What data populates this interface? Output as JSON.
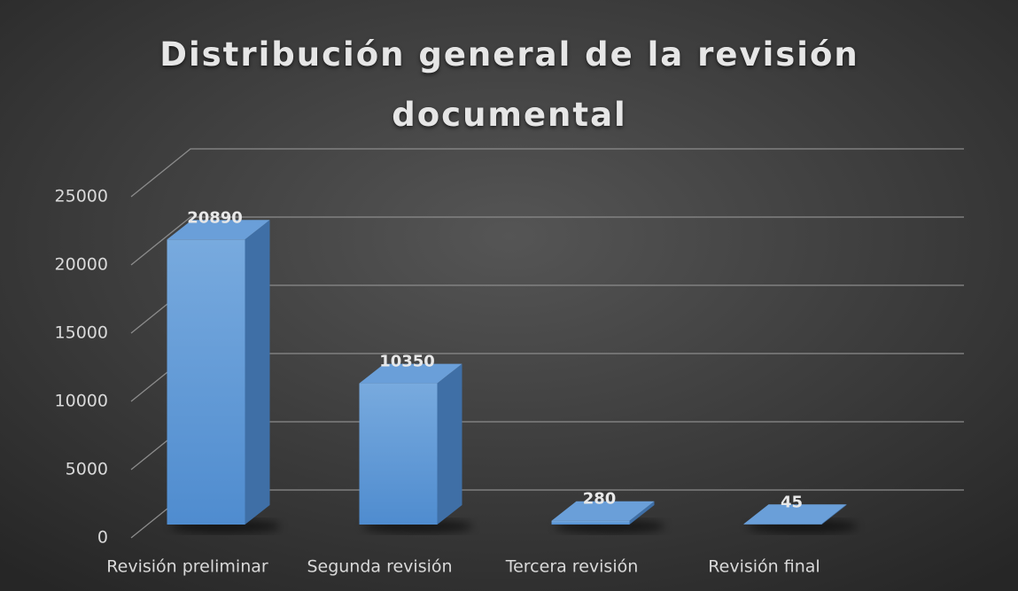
{
  "chart_data": {
    "type": "bar3d",
    "title": "Distribución general de la revisión documental",
    "categories": [
      "Revisión preliminar",
      "Segunda revisión",
      "Tercera revisión",
      "Revisión final"
    ],
    "values": [
      20890,
      10350,
      280,
      45
    ],
    "color": "#5b9bd5",
    "ylim": [
      0,
      25000
    ],
    "yticks": [
      0,
      5000,
      10000,
      15000,
      20000,
      25000
    ],
    "grid": true
  }
}
